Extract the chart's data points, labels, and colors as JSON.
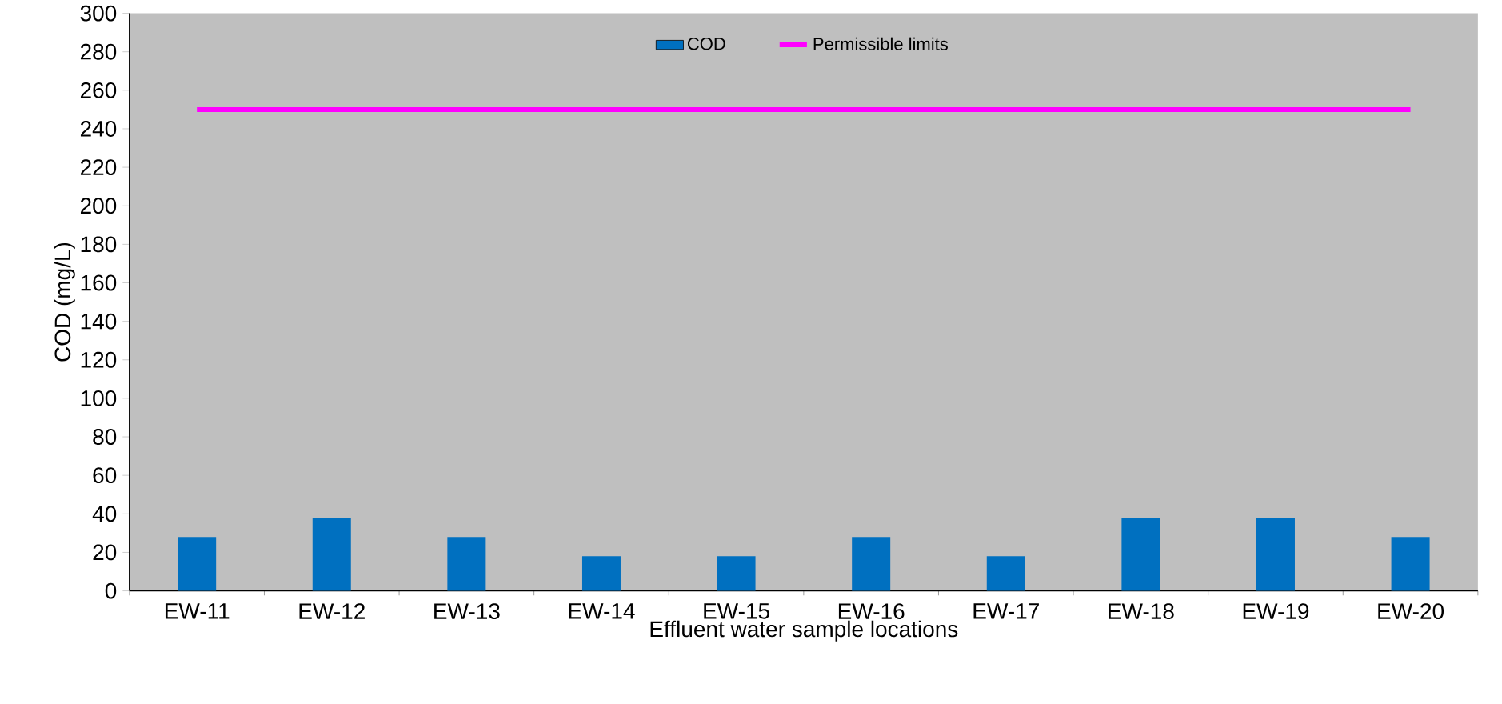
{
  "chart_data": {
    "type": "bar",
    "xlabel": "Effluent  water sample locations",
    "ylabel": "COD (mg/L)",
    "categories": [
      "EW-11",
      "EW-12",
      "EW-13",
      "EW-14",
      "EW-15",
      "EW-16",
      "EW-17",
      "EW-18",
      "EW-19",
      "EW-20"
    ],
    "series": [
      {
        "name": "COD",
        "color": "#0070c0",
        "values": [
          28,
          38,
          28,
          18,
          18,
          28,
          18,
          38,
          38,
          28
        ]
      },
      {
        "name": "Permissible limits",
        "type": "line",
        "color": "#ff00ff",
        "values": [
          250,
          250,
          250,
          250,
          250,
          250,
          250,
          250,
          250,
          250
        ]
      }
    ],
    "ylim": [
      0,
      300
    ],
    "yticks": [
      0,
      20,
      40,
      60,
      80,
      100,
      120,
      140,
      160,
      180,
      200,
      220,
      240,
      260,
      280,
      300
    ],
    "legend": "top",
    "grid": false,
    "marker": "none"
  }
}
